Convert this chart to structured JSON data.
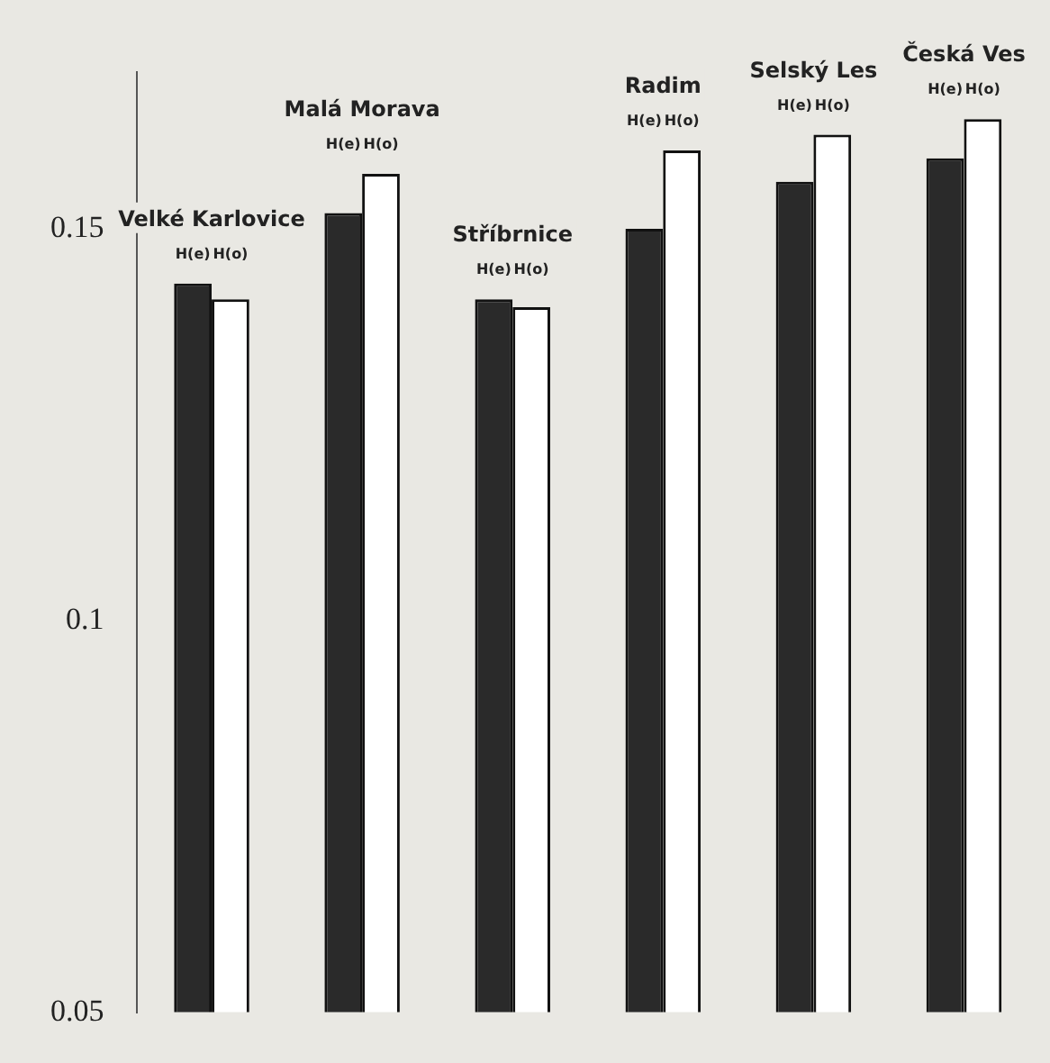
{
  "chart_data": {
    "type": "bar",
    "categories": [
      null,
      null,
      null,
      null,
      null,
      null
    ],
    "series": [
      {
        "name": "H(e)",
        "color": "#2a2a2a",
        "values": [
          0.143,
          0.152,
          0.141,
          0.15,
          0.156,
          0.159
        ]
      },
      {
        "name": "H(o)",
        "color": "#ffffff",
        "values": [
          0.141,
          0.157,
          0.14,
          0.16,
          0.162,
          0.164
        ]
      }
    ],
    "annotations": [
      {
        "text": "Velké Karlovice",
        "y": 0.143
      },
      {
        "text": "Malá Morava",
        "y": 0.157
      },
      {
        "text": "Stříbrnice",
        "y": 0.141
      },
      {
        "text": "Radim",
        "y": 0.16
      },
      {
        "text": "Selský Les",
        "y": 0.162
      },
      {
        "text": "Česká Ves",
        "y": 0.164
      }
    ],
    "ylim": [
      0.05,
      0.17
    ],
    "yticks": [
      0.05,
      0.1,
      0.15
    ],
    "grid": false,
    "legend": false,
    "tick_labels": "y"
  }
}
